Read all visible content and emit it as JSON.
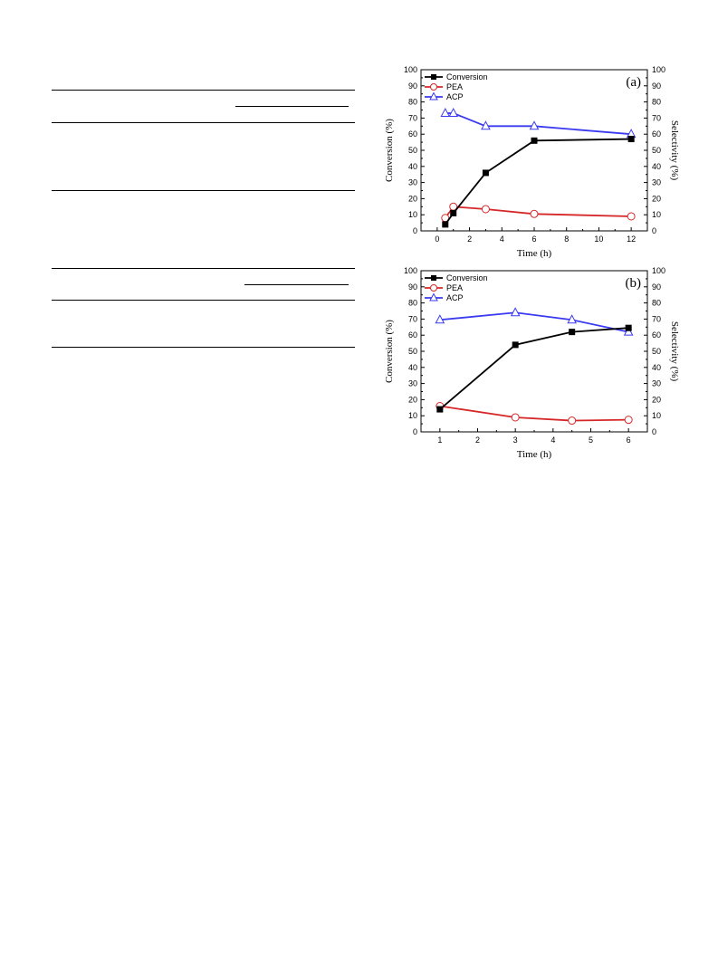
{
  "chart_data": [
    {
      "type": "line",
      "panel_label": "(a)",
      "xlabel": "Time (h)",
      "ylabel": "Conversion (%)",
      "y2label": "Selectivity (%)",
      "xlim": [
        -1,
        13
      ],
      "xticks": [
        0,
        2,
        4,
        6,
        8,
        10,
        12
      ],
      "ylim": [
        0,
        100
      ],
      "yticks": [
        0,
        10,
        20,
        30,
        40,
        50,
        60,
        70,
        80,
        90,
        100
      ],
      "y2lim": [
        0,
        100
      ],
      "legend_position": "top-left",
      "grid": false,
      "series": [
        {
          "name": "Conversion",
          "axis": "left",
          "color": "#000000",
          "marker": "square",
          "x": [
            0.5,
            1,
            3,
            6,
            12
          ],
          "y": [
            4,
            11,
            36,
            56,
            57
          ]
        },
        {
          "name": "PEA",
          "axis": "right",
          "color": "#d62728",
          "marker": "circle",
          "x": [
            0.5,
            1,
            3,
            6,
            12
          ],
          "y": [
            8,
            15,
            13.5,
            10.5,
            9
          ]
        },
        {
          "name": "ACP",
          "axis": "right",
          "color": "#3a3af0",
          "marker": "triangle",
          "x": [
            0.5,
            1,
            3,
            6,
            12
          ],
          "y": [
            73,
            73,
            65,
            65,
            60
          ]
        }
      ]
    },
    {
      "type": "line",
      "panel_label": "(b)",
      "xlabel": "Time (h)",
      "ylabel": "Conversion (%)",
      "y2label": "Selectivity (%)",
      "xlim": [
        0.5,
        6.5
      ],
      "xticks": [
        1,
        2,
        3,
        4,
        5,
        6
      ],
      "ylim": [
        0,
        100
      ],
      "yticks": [
        0,
        10,
        20,
        30,
        40,
        50,
        60,
        70,
        80,
        90,
        100
      ],
      "y2lim": [
        0,
        100
      ],
      "legend_position": "top-left",
      "grid": false,
      "series": [
        {
          "name": "Conversion",
          "axis": "left",
          "color": "#000000",
          "marker": "square",
          "x": [
            1,
            3,
            4.5,
            6
          ],
          "y": [
            14,
            54,
            62,
            64.5
          ]
        },
        {
          "name": "PEA",
          "axis": "right",
          "color": "#d62728",
          "marker": "circle",
          "x": [
            1,
            3,
            4.5,
            6
          ],
          "y": [
            16,
            9,
            7,
            7.5
          ]
        },
        {
          "name": "ACP",
          "axis": "right",
          "color": "#3a3af0",
          "marker": "triangle",
          "x": [
            1,
            3,
            4.5,
            6
          ],
          "y": [
            69.5,
            74,
            69.5,
            62
          ]
        }
      ]
    }
  ]
}
